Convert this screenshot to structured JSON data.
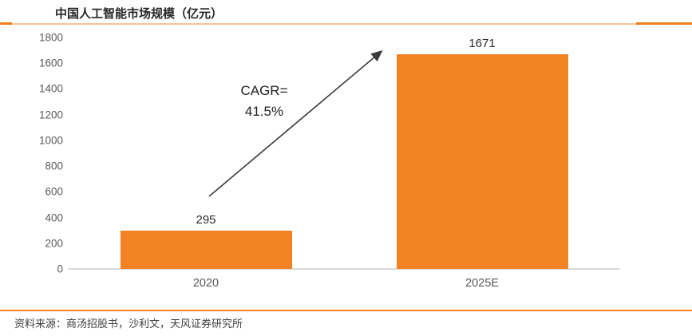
{
  "header": {
    "title": "中国人工智能市场规模（亿元）"
  },
  "annotation": {
    "line1": "CAGR=",
    "line2": "41.5%"
  },
  "footer": {
    "source": "资料来源：商汤招股书，沙利文，天风证券研究所"
  },
  "colors": {
    "bar": "#F28223",
    "divider_light": "#F7C491",
    "divider_dark": "#EF7D1A",
    "bottom_rule": "#F5821F",
    "axis_line": "#D9D9D9",
    "tick_text": "#595959",
    "value_text": "#2B2B2B",
    "title_text": "#262626",
    "annotation_text": "#1F1F1F"
  },
  "chart_data": {
    "type": "bar",
    "title": "中国人工智能市场规模（亿元）",
    "categories": [
      "2020",
      "2025E"
    ],
    "values": [
      295,
      1671
    ],
    "xlabel": "",
    "ylabel": "",
    "ylim": [
      0,
      1800
    ],
    "yticks": [
      0,
      200,
      400,
      600,
      800,
      1000,
      1200,
      1400,
      1600,
      1800
    ],
    "grid": false,
    "legend": false,
    "bar_color": "#F28223",
    "annotation": "CAGR= 41.5%"
  }
}
